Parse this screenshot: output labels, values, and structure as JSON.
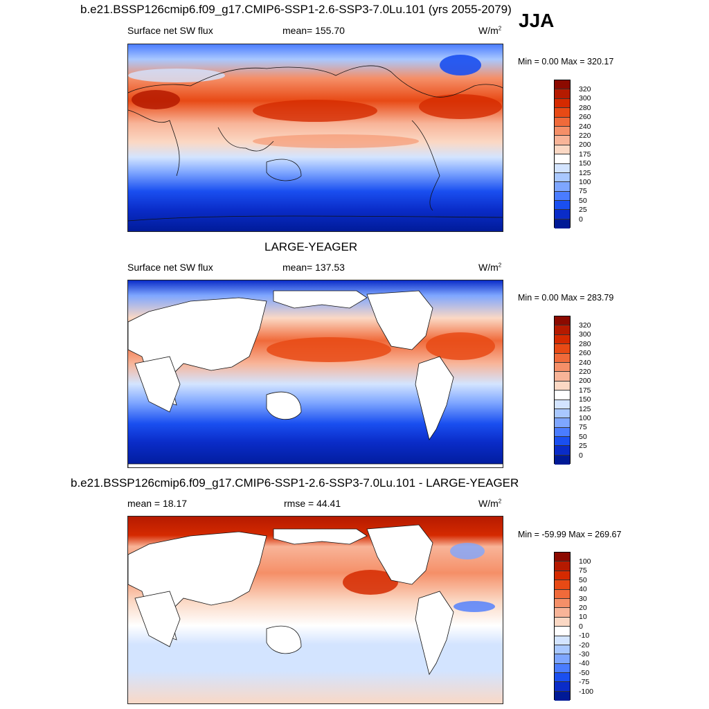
{
  "season": "JJA",
  "panels": [
    {
      "title": "b.e21.BSSP126cmip6.f09_g17.CMIP6-SSP1-2.6-SSP3-7.0Lu.101 (yrs 2055-2079)",
      "left_label": "Surface net SW flux",
      "center_label": "mean= 155.70",
      "units": "W/m",
      "units_sup": "2",
      "minmax": "Min =   0.00 Max = 320.17",
      "levels": [
        "320",
        "300",
        "280",
        "260",
        "240",
        "220",
        "200",
        "175",
        "150",
        "125",
        "100",
        "75",
        "50",
        "25",
        "0"
      ],
      "colors": [
        "#8c0a00",
        "#b51a00",
        "#d52a00",
        "#e84a15",
        "#f06a3a",
        "#f58f68",
        "#f8b498",
        "#fbd8c4",
        "#ffffff",
        "#d3e4ff",
        "#a9c8ff",
        "#7ea6ff",
        "#4a7cff",
        "#1a4ff0",
        "#0a2cc8",
        "#001a96"
      ]
    },
    {
      "title": "LARGE-YEAGER",
      "left_label": "Surface net SW flux",
      "center_label": "mean= 137.53",
      "units": "W/m",
      "units_sup": "2",
      "minmax": "Min =   0.00 Max = 283.79",
      "levels": [
        "320",
        "300",
        "280",
        "260",
        "240",
        "220",
        "200",
        "175",
        "150",
        "125",
        "100",
        "75",
        "50",
        "25",
        "0"
      ],
      "colors": [
        "#8c0a00",
        "#b51a00",
        "#d52a00",
        "#e84a15",
        "#f06a3a",
        "#f58f68",
        "#f8b498",
        "#fbd8c4",
        "#ffffff",
        "#d3e4ff",
        "#a9c8ff",
        "#7ea6ff",
        "#4a7cff",
        "#1a4ff0",
        "#0a2cc8",
        "#001a96"
      ]
    },
    {
      "title": "b.e21.BSSP126cmip6.f09_g17.CMIP6-SSP1-2.6-SSP3-7.0Lu.101 - LARGE-YEAGER",
      "left_label": "mean =  18.17",
      "center_label": "rmse =  44.41",
      "units": "W/m",
      "units_sup": "2",
      "minmax": "Min = -59.99 Max = 269.67",
      "levels": [
        "100",
        "75",
        "50",
        "40",
        "30",
        "20",
        "10",
        "0",
        "-10",
        "-20",
        "-30",
        "-40",
        "-50",
        "-75",
        "-100"
      ],
      "colors": [
        "#8c0a00",
        "#b51a00",
        "#d52a00",
        "#e84a15",
        "#f06a3a",
        "#f58f68",
        "#f8b498",
        "#fbd8c4",
        "#ffffff",
        "#d3e4ff",
        "#a9c8ff",
        "#7ea6ff",
        "#4a7cff",
        "#1a4ff0",
        "#0a2cc8",
        "#001a96"
      ]
    }
  ]
}
